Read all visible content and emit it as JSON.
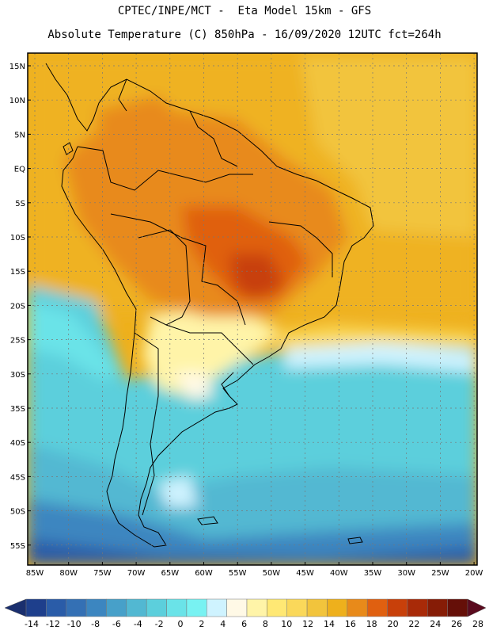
{
  "header": {
    "line1": "CPTEC/INPE/MCT -  Eta Model 15km - GFS",
    "line2": "Absolute Temperature (C) 850hPa - 16/09/2020 12UTC fct=264h"
  },
  "map": {
    "lat_labels": [
      "15N",
      "10N",
      "5N",
      "EQ",
      "5S",
      "10S",
      "15S",
      "20S",
      "25S",
      "30S",
      "35S",
      "40S",
      "45S",
      "50S",
      "55S"
    ],
    "lon_labels": [
      "85W",
      "80W",
      "75W",
      "70W",
      "65W",
      "60W",
      "55W",
      "50W",
      "45W",
      "40W",
      "35W",
      "30W",
      "25W",
      "20W"
    ]
  },
  "colorbar": {
    "labels": [
      "-14",
      "-12",
      "-10",
      "-8",
      "-6",
      "-4",
      "-2",
      "0",
      "2",
      "4",
      "6",
      "8",
      "10",
      "12",
      "14",
      "16",
      "18",
      "20",
      "22",
      "24",
      "26",
      "28"
    ],
    "colors": [
      "#1e3f8c",
      "#2a5ca8",
      "#3470b4",
      "#3c86c0",
      "#47a0c9",
      "#52b8d2",
      "#5ccfdc",
      "#6ae3e8",
      "#78f2f2",
      "#cff3ff",
      "#fff9e6",
      "#fff4a8",
      "#ffe874",
      "#fad85a",
      "#f2c43c",
      "#eeb01c",
      "#e88a1a",
      "#e06010",
      "#c8400a",
      "#a82a08",
      "#861c06",
      "#650f08"
    ],
    "low_color": "#1a2f6e",
    "high_color": "#5a0a1e"
  }
}
